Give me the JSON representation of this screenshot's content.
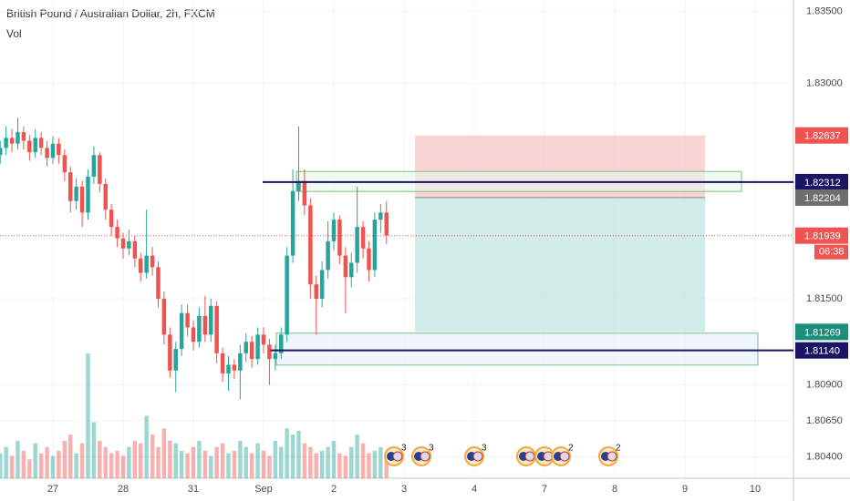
{
  "chart_data": {
    "type": "candlestick",
    "title": "British Pound / Australian Dollar, 2h, FXCM",
    "subtitle": "Vol",
    "up_color": "#26a69a",
    "down_color": "#ef5350",
    "xlim": [
      -0.753,
      10.545
    ],
    "ylim": [
      1.8025,
      1.8358
    ],
    "xticks": [
      {
        "value": 0,
        "label": "27"
      },
      {
        "value": 1,
        "label": "28"
      },
      {
        "value": 2,
        "label": "31"
      },
      {
        "value": 3,
        "label": "Sep"
      },
      {
        "value": 4,
        "label": "2"
      },
      {
        "value": 5,
        "label": "3"
      },
      {
        "value": 6,
        "label": "4"
      },
      {
        "value": 7,
        "label": "7"
      },
      {
        "value": 8,
        "label": "8"
      },
      {
        "value": 9,
        "label": "9"
      },
      {
        "value": 10,
        "label": "10"
      }
    ],
    "yticks": [
      {
        "value": 1.835,
        "label": "1.83500"
      },
      {
        "value": 1.83,
        "label": "1.83000"
      },
      {
        "value": 1.815,
        "label": "1.81500"
      },
      {
        "value": 1.809,
        "label": "1.80900"
      },
      {
        "value": 1.8065,
        "label": "1.80650"
      },
      {
        "value": 1.804,
        "label": "1.80400"
      }
    ],
    "x": [
      -0.75,
      -0.667,
      -0.583,
      -0.5,
      -0.417,
      -0.333,
      -0.25,
      -0.167,
      -0.083,
      0,
      0.083,
      0.167,
      0.25,
      0.333,
      0.417,
      0.5,
      0.583,
      0.667,
      0.75,
      0.833,
      0.917,
      1,
      1.083,
      1.167,
      1.25,
      1.333,
      1.417,
      1.5,
      1.583,
      1.667,
      1.75,
      1.833,
      1.917,
      2,
      2.083,
      2.167,
      2.25,
      2.333,
      2.417,
      2.5,
      2.583,
      2.667,
      2.75,
      2.833,
      2.917,
      3,
      3.083,
      3.167,
      3.25,
      3.333,
      3.417,
      3.5,
      3.583,
      3.667,
      3.75,
      3.833,
      3.917,
      4,
      4.083,
      4.167,
      4.25,
      4.333,
      4.417,
      4.5,
      4.583,
      4.667,
      4.75
    ],
    "open": [
      1.825,
      1.8255,
      1.8262,
      1.8258,
      1.8266,
      1.826,
      1.8252,
      1.8262,
      1.8255,
      1.8248,
      1.8258,
      1.825,
      1.8238,
      1.8218,
      1.8228,
      1.821,
      1.8235,
      1.825,
      1.823,
      1.8212,
      1.82,
      1.8192,
      1.8185,
      1.819,
      1.8178,
      1.8168,
      1.818,
      1.8172,
      1.815,
      1.8125,
      1.81,
      1.8115,
      1.814,
      1.813,
      1.812,
      1.8138,
      1.8125,
      1.8145,
      1.8112,
      1.8098,
      1.8104,
      1.81,
      1.8112,
      1.812,
      1.8108,
      1.8125,
      1.8118,
      1.8108,
      1.8112,
      1.8125,
      1.818,
      1.8225,
      1.8232,
      1.8215,
      1.816,
      1.815,
      1.817,
      1.819,
      1.8205,
      1.818,
      1.8165,
      1.8175,
      1.82,
      1.8185,
      1.817,
      1.8205,
      1.821
    ],
    "high": [
      1.826,
      1.827,
      1.8268,
      1.8276,
      1.827,
      1.8264,
      1.8268,
      1.8266,
      1.826,
      1.8263,
      1.8262,
      1.8254,
      1.8242,
      1.8234,
      1.8232,
      1.824,
      1.8256,
      1.8252,
      1.8234,
      1.8216,
      1.8205,
      1.8196,
      1.8198,
      1.8194,
      1.8182,
      1.8212,
      1.8186,
      1.8176,
      1.8155,
      1.813,
      1.812,
      1.8146,
      1.8146,
      1.8135,
      1.8144,
      1.8152,
      1.815,
      1.8148,
      1.8116,
      1.811,
      1.8108,
      1.8118,
      1.8126,
      1.8124,
      1.813,
      1.813,
      1.8122,
      1.8118,
      1.813,
      1.8186,
      1.824,
      1.827,
      1.824,
      1.822,
      1.8166,
      1.8176,
      1.8204,
      1.821,
      1.8208,
      1.8186,
      1.8182,
      1.8228,
      1.8204,
      1.819,
      1.821,
      1.8216,
      1.8218
    ],
    "low": [
      1.8244,
      1.825,
      1.8252,
      1.8254,
      1.8254,
      1.8246,
      1.8248,
      1.825,
      1.8242,
      1.8244,
      1.8244,
      1.8232,
      1.821,
      1.8212,
      1.82,
      1.8205,
      1.823,
      1.8224,
      1.8205,
      1.8194,
      1.8186,
      1.8178,
      1.818,
      1.8172,
      1.8162,
      1.8164,
      1.8166,
      1.8144,
      1.8118,
      1.8095,
      1.8085,
      1.811,
      1.8124,
      1.8114,
      1.8116,
      1.812,
      1.812,
      1.8105,
      1.8092,
      1.8086,
      1.8094,
      1.808,
      1.8106,
      1.8102,
      1.8104,
      1.8112,
      1.809,
      1.81,
      1.8108,
      1.812,
      1.8175,
      1.8218,
      1.8208,
      1.815,
      1.8125,
      1.8144,
      1.8164,
      1.8184,
      1.8174,
      1.814,
      1.8158,
      1.8168,
      1.8178,
      1.8162,
      1.8165,
      1.8196,
      1.8188
    ],
    "close": [
      1.8255,
      1.8262,
      1.8258,
      1.8266,
      1.826,
      1.8252,
      1.8262,
      1.8255,
      1.8248,
      1.8258,
      1.825,
      1.8238,
      1.8218,
      1.8228,
      1.821,
      1.8235,
      1.825,
      1.823,
      1.8212,
      1.82,
      1.8192,
      1.8185,
      1.819,
      1.8178,
      1.8168,
      1.818,
      1.8172,
      1.815,
      1.8125,
      1.81,
      1.8115,
      1.814,
      1.813,
      1.812,
      1.8138,
      1.8125,
      1.8145,
      1.8112,
      1.8098,
      1.8104,
      1.81,
      1.8112,
      1.812,
      1.8108,
      1.8125,
      1.8118,
      1.8108,
      1.8112,
      1.8125,
      1.818,
      1.8225,
      1.8232,
      1.8215,
      1.816,
      1.815,
      1.817,
      1.819,
      1.8205,
      1.818,
      1.8165,
      1.8175,
      1.82,
      1.8185,
      1.817,
      1.8205,
      1.821,
      1.8194
    ],
    "volume": [
      20,
      25,
      18,
      30,
      22,
      15,
      28,
      20,
      25,
      18,
      22,
      30,
      35,
      20,
      28,
      100,
      45,
      30,
      25,
      20,
      22,
      18,
      25,
      30,
      28,
      50,
      35,
      25,
      40,
      30,
      28,
      22,
      20,
      25,
      30,
      22,
      18,
      25,
      28,
      20,
      22,
      30,
      25,
      20,
      28,
      22,
      18,
      30,
      25,
      40,
      35,
      38,
      28,
      25,
      20,
      22,
      25,
      30,
      20,
      18,
      25,
      35,
      28,
      20,
      22,
      25,
      15
    ],
    "position": {
      "x_start": 5.156,
      "x_end": 9.286,
      "stop": 1.82637,
      "entry": 1.82204,
      "target": 1.81269,
      "stop_color": "#f7c6c6",
      "target_color": "#bfe6e2"
    },
    "zones": [
      {
        "x_start": 3.468,
        "x_end": 9.805,
        "top": 1.82386,
        "bottom": 1.82247,
        "fill": "#eaf6ec",
        "stroke": "#7cc083"
      },
      {
        "x_start": 3.182,
        "x_end": 10.039,
        "top": 1.8126,
        "bottom": 1.81038,
        "fill": "#e6eefb",
        "stroke": "#7cc083"
      }
    ],
    "levels": [
      {
        "value": 1.82312,
        "x_start": 2.987,
        "color": "#1a1464"
      },
      {
        "value": {
          "value": 1.8114,
          "label": "1.81140"
        },
        "x_start": 3.1,
        "color": "#1a1464"
      }
    ],
    "price_labels": [
      {
        "value": 1.82637,
        "color": "#f05350"
      },
      {
        "value": 1.82204,
        "color": "#6e6e6e"
      },
      {
        "value": 1.81939,
        "color": "#f05350"
      },
      {
        "value": 1.81269,
        "color": "#1a8f7a"
      }
    ],
    "last_price": 1.81939,
    "countdown": "06:38",
    "events": [
      {
        "x": 4.857,
        "count": 3
      },
      {
        "x": 5.247,
        "count": 3
      },
      {
        "x": 6.0,
        "count": 3
      },
      {
        "x": 6.74
      },
      {
        "x": 7.0
      },
      {
        "x": 7.234,
        "count": 2
      },
      {
        "x": 7.909,
        "count": 2
      }
    ]
  }
}
